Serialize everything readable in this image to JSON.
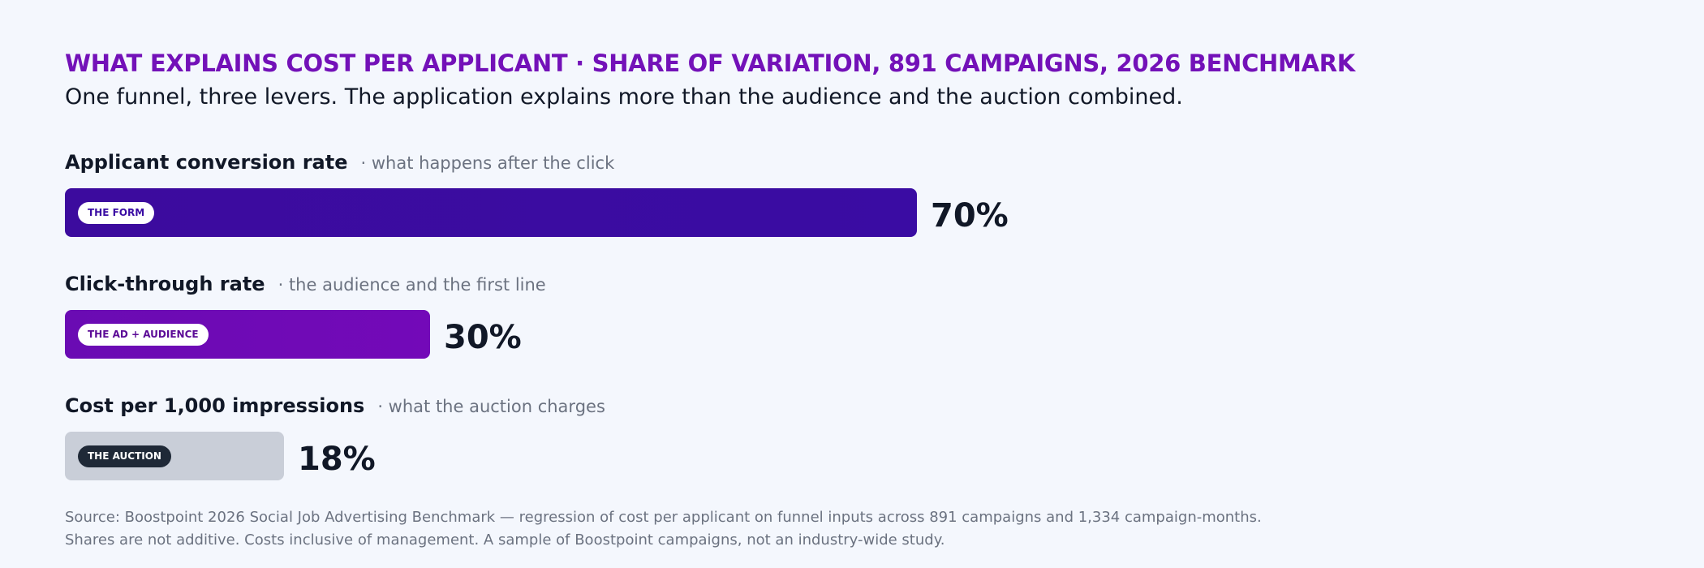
{
  "title": "WHAT EXPLAINS COST PER APPLICANT · SHARE OF VARIATION, 891 CAMPAIGNS, 2026 BENCHMARK",
  "subtitle": "One funnel, three levers. The application explains more than the audience and the auction combined.",
  "source": {
    "line1": "Source: Boostpoint 2026 Social Job Advertising Benchmark — regression of cost per applicant on funnel inputs across 891 campaigns and 1,334 campaign-months.",
    "line2": "Shares are not additive. Costs inclusive of management. A sample of Boostpoint campaigns, not an industry-wide study."
  },
  "chart_data": {
    "type": "bar",
    "orientation": "horizontal",
    "title": "WHAT EXPLAINS COST PER APPLICANT · SHARE OF VARIATION, 891 CAMPAIGNS, 2026 BENCHMARK",
    "subtitle": "One funnel, three levers. The application explains more than the audience and the auction combined.",
    "unit": "%",
    "xlim": [
      0,
      100
    ],
    "grid": false,
    "categories": [
      "Applicant conversion rate",
      "Click-through rate",
      "Cost per 1,000 impressions"
    ],
    "values": [
      70,
      30,
      18
    ],
    "value_labels": [
      "70%",
      "30%",
      "18%"
    ],
    "notes": [
      "· what happens after the click",
      "· the audience and the first line",
      "· what the auction charges"
    ],
    "tags": [
      "THE FORM",
      "THE AD + AUDIENCE",
      "THE AUCTION"
    ],
    "colors": [
      "#3a0ca3",
      "#7209b7",
      "#c9ced8"
    ],
    "tag_styles": [
      {
        "bg": "#ffffff",
        "fg": "#3a0ca3"
      },
      {
        "bg": "#ffffff",
        "fg": "#5b0a96"
      },
      {
        "bg": "#1f2937",
        "fg": "#ffffff"
      }
    ]
  }
}
